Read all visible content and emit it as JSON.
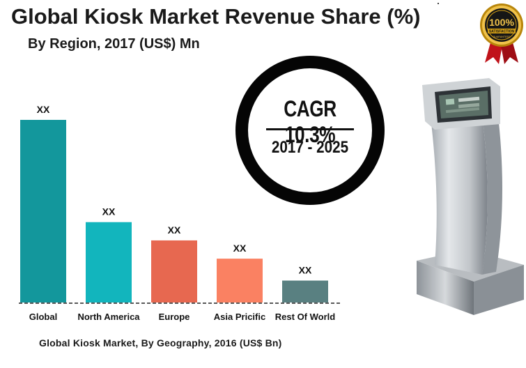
{
  "header": {
    "title": "Global Kiosk Market Revenue Share (%)",
    "subtitle": "By Region, 2017 (US$) Mn"
  },
  "cagr": {
    "value": "CAGR 10.3%",
    "period": "2017 - 2025"
  },
  "chart_data": {
    "type": "bar",
    "categories": [
      "Global",
      "North America",
      "Europe",
      "Asia Pricific",
      "Rest Of World"
    ],
    "values": [
      100,
      44,
      34,
      24,
      12
    ],
    "data_labels": [
      "XX",
      "XX",
      "XX",
      "XX",
      "XX"
    ],
    "colors": [
      "#13979c",
      "#12b5bd",
      "#e76850",
      "#fa8162",
      "#598081"
    ],
    "ylim": [
      0,
      100
    ],
    "grid": false,
    "baseline": "dashed"
  },
  "footer": {
    "caption": "Global Kiosk Market, By Geography, 2016 (US$ Bn)"
  },
  "badge": {
    "text_main": "100%",
    "text_sub": "SATISFACTION",
    "text_small": "GUARANTEED",
    "gold": "#d4a017",
    "ribbon": "#c0121a"
  }
}
